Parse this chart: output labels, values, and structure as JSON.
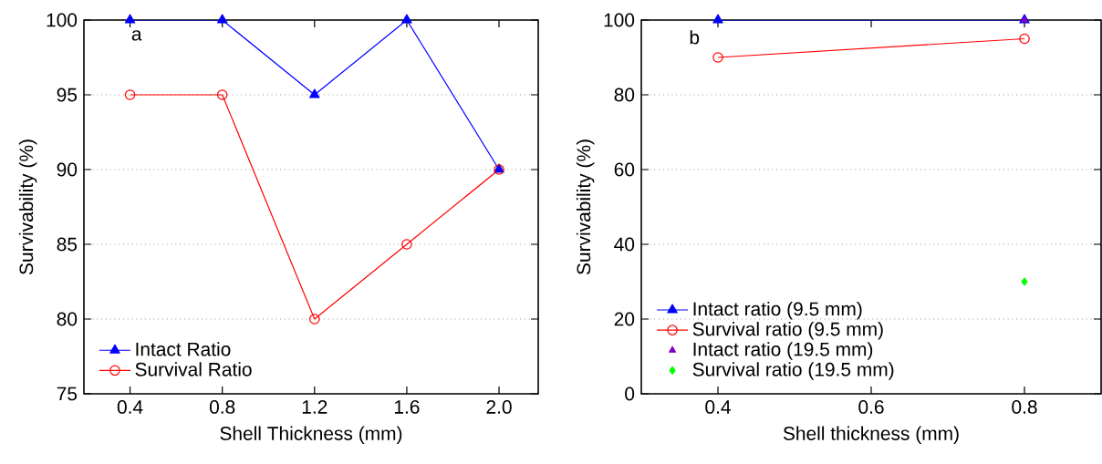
{
  "chart_data": [
    {
      "type": "line",
      "xlabel": "Shell Thickness (mm)",
      "ylabel": "Survivability (%)",
      "annotations": [
        "a"
      ],
      "x": [
        0.4,
        0.8,
        1.2,
        1.6,
        2.0
      ],
      "series": [
        {
          "name": "Intact Ratio",
          "color": "#0000ff",
          "marker": "triangle",
          "line_style": "solid",
          "values": [
            100,
            100,
            95,
            100,
            90
          ]
        },
        {
          "name": "Survival Ratio",
          "color": "#ff0000",
          "marker": "circle",
          "line_style": "solid",
          "values": [
            95,
            95,
            80,
            85,
            90
          ]
        }
      ],
      "xlim": [
        0.2,
        2.17
      ],
      "xticks": [
        0.4,
        0.8,
        1.2,
        1.6,
        {
          "value": 2.0,
          "label": "2.0"
        }
      ],
      "ylim": [
        75,
        100
      ],
      "yticks": [
        75,
        80,
        85,
        90,
        95,
        100
      ],
      "grid": "y",
      "legend": "bottom left"
    },
    {
      "type": "line",
      "xlabel": "Shell thickness (mm)",
      "ylabel": "Survivability (%)",
      "annotations": [
        "b"
      ],
      "x": [
        0.4,
        0.8
      ],
      "series": [
        {
          "name": "Intact ratio (9.5 mm)",
          "color": "#0000ff",
          "marker": "triangle",
          "line_style": "solid",
          "values": [
            100,
            100
          ]
        },
        {
          "name": "Survival ratio (9.5 mm)",
          "color": "#ff0000",
          "marker": "circle",
          "line_style": "solid",
          "values": [
            90,
            95
          ]
        },
        {
          "name": "Intact ratio (19.5 mm)",
          "type": "scatter",
          "color": "#8000c0",
          "marker": "triangle",
          "x": [
            0.8
          ],
          "values": [
            100
          ]
        },
        {
          "name": "Survival ratio (19.5 mm)",
          "type": "scatter",
          "color": "#00ff00",
          "marker": "diamond",
          "x": [
            0.8
          ],
          "values": [
            30
          ]
        }
      ],
      "xlim": [
        0.3,
        0.9
      ],
      "xticks": [
        0.4,
        0.6,
        0.8
      ],
      "ylim": [
        0,
        100
      ],
      "yticks": [
        0,
        20,
        40,
        60,
        80,
        100
      ],
      "grid": "y",
      "legend": "bottom left"
    }
  ]
}
